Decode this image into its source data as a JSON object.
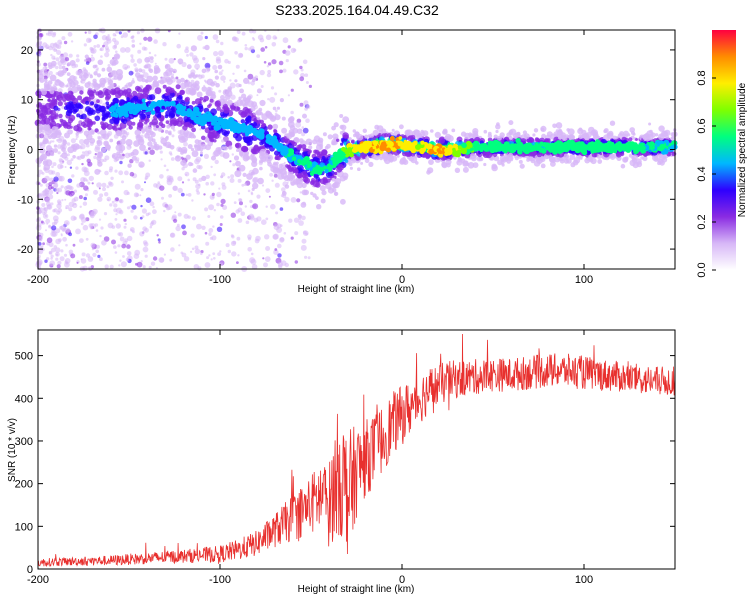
{
  "title": "S233.2025.164.04.49.C32",
  "colors": {
    "snr_line": "#e8302e",
    "ridge_core": "#ff2a3c",
    "colormap": [
      "#ffffff",
      "#d7b7f7",
      "#8a2be2",
      "#2e00ff",
      "#00b7ff",
      "#00ff7f",
      "#7fff00",
      "#ffee00",
      "#ff8c00",
      "#ff0040"
    ]
  },
  "chart_data": [
    {
      "id": "spectrogram",
      "type": "heatmap",
      "xlabel": "Height of straight line (km)",
      "ylabel": "Frequency (Hz)",
      "xlim": [
        -200,
        150
      ],
      "ylim": [
        -24,
        24
      ],
      "x_ticks": [
        -200,
        -100,
        0,
        100
      ],
      "y_ticks": [
        -20,
        -10,
        0,
        10,
        20
      ],
      "x_tick_labels": [
        "-200",
        "-100",
        "0",
        "100"
      ],
      "y_tick_labels": [
        "-20",
        "-10",
        "0",
        "10",
        "20"
      ],
      "grid": false,
      "colorbar": {
        "label": "Normalized spectral amplitude",
        "range": [
          0,
          1
        ],
        "ticks": [
          0.0,
          0.2,
          0.4,
          0.6,
          0.8
        ],
        "tick_labels": [
          "0.0",
          "0.2",
          "0.4",
          "0.6",
          "0.8"
        ]
      },
      "ridge": {
        "x": [
          -200,
          -180,
          -160,
          -140,
          -125,
          -115,
          -105,
          -95,
          -85,
          -75,
          -65,
          -58,
          -52,
          -46,
          -40,
          -34,
          -28,
          -20,
          -12,
          -5,
          0,
          10,
          20,
          40,
          60,
          80,
          100,
          120,
          150
        ],
        "freq_hz": [
          8,
          8,
          7.5,
          8.5,
          9,
          7,
          6,
          5,
          4,
          2.5,
          0,
          -2,
          -3,
          -4,
          -3.5,
          -1,
          0,
          0.5,
          1,
          1,
          1,
          0.5,
          0,
          0.5,
          0.5,
          0.5,
          0.5,
          0.5,
          0.5
        ],
        "amplitude": [
          0.35,
          0.4,
          0.45,
          0.45,
          0.45,
          0.45,
          0.45,
          0.45,
          0.5,
          0.5,
          0.5,
          0.55,
          0.55,
          0.55,
          0.55,
          0.6,
          0.8,
          0.85,
          0.9,
          0.9,
          0.85,
          0.8,
          0.95,
          0.6,
          0.6,
          0.6,
          0.6,
          0.6,
          0.55
        ]
      }
    },
    {
      "id": "snr",
      "type": "line",
      "xlabel": "Height of straight line (km)",
      "ylabel": "SNR (10 * v/v)",
      "xlim": [
        -200,
        150
      ],
      "ylim": [
        0,
        560
      ],
      "x_ticks": [
        -200,
        -100,
        0,
        100
      ],
      "y_ticks": [
        0,
        100,
        200,
        300,
        400,
        500
      ],
      "x_tick_labels": [
        "-200",
        "-100",
        "0",
        "100"
      ],
      "y_tick_labels": [
        "0",
        "100",
        "200",
        "300",
        "400",
        "500"
      ],
      "grid": false,
      "series": [
        {
          "x": [
            -200,
            -180,
            -160,
            -140,
            -120,
            -100,
            -90,
            -80,
            -70,
            -60,
            -50,
            -45,
            -40,
            -35,
            -30,
            -28,
            -25,
            -20,
            -15,
            -10,
            -5,
            0,
            5,
            10,
            15,
            20,
            25,
            30,
            40,
            50,
            60,
            70,
            80,
            90,
            100,
            110,
            120,
            130,
            140,
            150
          ],
          "values": [
            15,
            18,
            20,
            25,
            30,
            35,
            45,
            60,
            90,
            120,
            150,
            170,
            150,
            230,
            180,
            190,
            230,
            260,
            280,
            310,
            340,
            360,
            380,
            400,
            420,
            430,
            440,
            445,
            450,
            455,
            455,
            460,
            465,
            465,
            460,
            455,
            450,
            445,
            440,
            440
          ],
          "spread": [
            10,
            10,
            12,
            14,
            16,
            20,
            25,
            30,
            40,
            55,
            70,
            90,
            100,
            150,
            150,
            140,
            110,
            90,
            85,
            80,
            75,
            70,
            65,
            60,
            55,
            50,
            48,
            45,
            42,
            40,
            40,
            40,
            40,
            40,
            40,
            38,
            36,
            35,
            35,
            35
          ]
        }
      ]
    }
  ]
}
